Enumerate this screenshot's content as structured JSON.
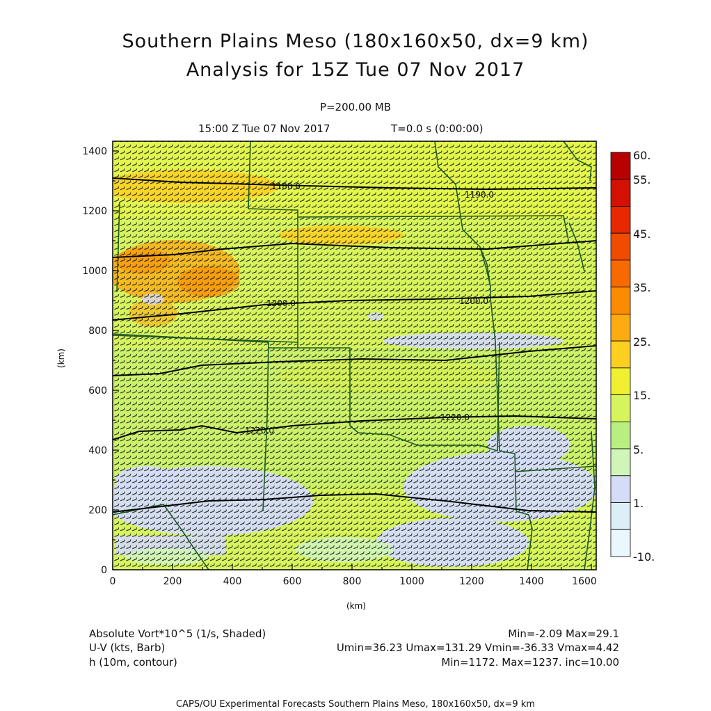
{
  "title": {
    "line1": "Southern Plains Meso (180x160x50, dx=9 km)",
    "line2": "Analysis for 15Z Tue 07 Nov 2017"
  },
  "subtitle": {
    "level": "P=200.00 MB",
    "time": "15:00 Z Tue 07 Nov 2017",
    "elapsed": "T=0.0 s (0:00:00)"
  },
  "axes": {
    "x_label": "(km)",
    "y_label": "(km)",
    "x_ticks": [
      "0",
      "200",
      "400",
      "600",
      "800",
      "1000",
      "1200",
      "1400",
      "1600"
    ],
    "y_ticks": [
      "0",
      "200",
      "400",
      "600",
      "800",
      "1000",
      "1200",
      "1400"
    ]
  },
  "colorbar": {
    "labels": [
      "60.",
      "55.",
      "45.",
      "35.",
      "25.",
      "15.",
      "5.",
      "1.",
      "-10."
    ],
    "colors": [
      "#b80000",
      "#d41000",
      "#e82800",
      "#f04c00",
      "#f76a00",
      "#fb8b00",
      "#fcab10",
      "#fdd020",
      "#f0f030",
      "#d6f55c",
      "#b8ef80",
      "#cff5b8",
      "#d4dcf8",
      "#dceef8",
      "#eaf7fc"
    ]
  },
  "contours": [
    {
      "label": "1180.0"
    },
    {
      "label": "1190.0"
    },
    {
      "label": "1200.0"
    },
    {
      "label": "1200.0"
    },
    {
      "label": "1220.0"
    },
    {
      "label": "1220.0"
    }
  ],
  "info": {
    "field1_name": "Absolute Vort*10^5 (1/s, Shaded)",
    "field1_stats": "Min=-2.09 Max=29.1",
    "field2_name": "U-V (kts, Barb)",
    "field2_stats": "Umin=36.23 Umax=131.29 Vmin=-36.33 Vmax=4.42",
    "field3_name": "h (10m, contour)",
    "field3_stats": "Min=1172. Max=1237. inc=10.00"
  },
  "footer": "CAPS/OU Experimental Forecasts  Southern Plains Meso, 180x160x50, dx=9 km"
}
